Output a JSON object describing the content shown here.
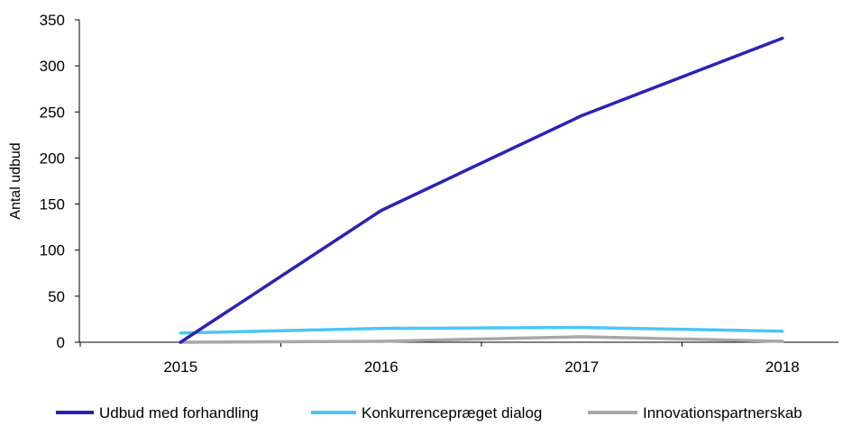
{
  "chart_data": {
    "type": "line",
    "title": "",
    "xlabel": "",
    "ylabel": "Antal udbud",
    "categories": [
      "2015",
      "2016",
      "2017",
      "2018"
    ],
    "ylim": [
      0,
      350
    ],
    "yticks": [
      "0",
      "50",
      "100",
      "150",
      "200",
      "250",
      "300",
      "350"
    ],
    "grid": false,
    "legend_position": "bottom",
    "series": [
      {
        "name": "Udbud med forhandling",
        "values": [
          0,
          143,
          246,
          330
        ],
        "color": "#2b22b5"
      },
      {
        "name": "Konkurrencepræget dialog",
        "values": [
          10,
          15,
          16,
          12
        ],
        "color": "#4cc6f5"
      },
      {
        "name": "Innovationspartnerskab",
        "values": [
          0,
          1,
          6,
          1
        ],
        "color": "#a6a8ab"
      }
    ]
  }
}
